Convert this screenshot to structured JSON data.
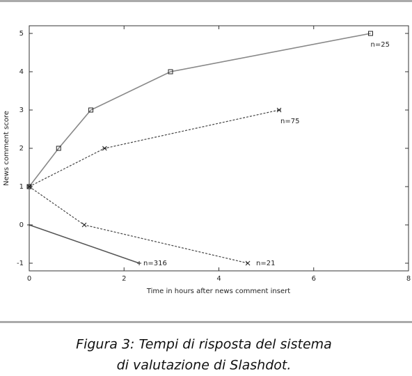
{
  "chart_data": {
    "type": "line",
    "xlabel": "Time in hours after news comment insert",
    "ylabel": "News comment score",
    "xlim": [
      0,
      8
    ],
    "xticks": [
      0,
      2,
      4,
      6,
      8
    ],
    "ylim": [
      -1.2,
      5.2
    ],
    "yticks": [
      -1,
      0,
      1,
      2,
      3,
      4,
      5
    ],
    "series": [
      {
        "name": "n=25",
        "color": "#888888",
        "dash": false,
        "marker": "square",
        "x": [
          0,
          0.62,
          1.3,
          2.98,
          7.2
        ],
        "values": [
          1,
          2,
          3,
          4,
          5
        ]
      },
      {
        "name": "n=75",
        "color": "#444444",
        "dash": true,
        "marker": "asterisk",
        "x": [
          0,
          1.59,
          5.27
        ],
        "values": [
          1,
          2,
          3
        ]
      },
      {
        "name": "n=21",
        "color": "#444444",
        "dash": true,
        "marker": "x",
        "x": [
          0,
          1.16,
          4.61
        ],
        "values": [
          1,
          0,
          -1
        ]
      },
      {
        "name": "n=316",
        "color": "#555555",
        "dash": false,
        "marker": "plus",
        "x": [
          0,
          2.32
        ],
        "values": [
          0,
          -1
        ]
      }
    ],
    "caption": [
      "Figura 3: Tempi di risposta del sistema",
      "di valutazione di Slashdot."
    ]
  }
}
